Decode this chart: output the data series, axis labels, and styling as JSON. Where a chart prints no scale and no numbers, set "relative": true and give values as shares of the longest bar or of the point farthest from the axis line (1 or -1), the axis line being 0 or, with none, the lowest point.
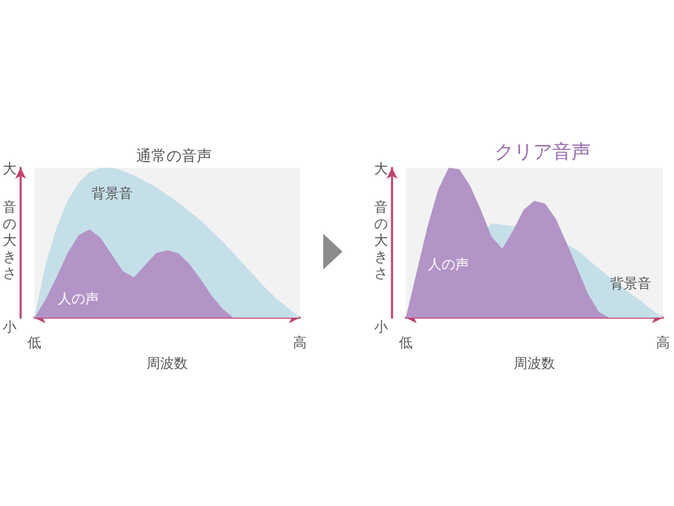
{
  "chart_data": [
    {
      "type": "area",
      "title": "通常の音声",
      "xlabel": "周波数",
      "ylabel": "音の大きさ",
      "relative": true,
      "annotations": [
        "大",
        "小"
      ],
      "categories": [
        "低",
        null,
        null,
        null,
        null,
        null,
        null,
        null,
        null,
        null,
        null,
        null,
        null,
        null,
        null,
        null,
        null,
        null,
        null,
        null,
        null,
        null,
        null,
        null,
        "高"
      ],
      "series": [
        {
          "name": "背景音",
          "color": "#c5dfe9",
          "values": [
            0,
            0.35,
            0.6,
            0.78,
            0.9,
            0.97,
            1,
            1,
            0.98,
            0.95,
            0.91,
            0.87,
            0.82,
            0.77,
            0.71,
            0.65,
            0.58,
            0.51,
            0.43,
            0.35,
            0.27,
            0.19,
            0.12,
            0.06,
            0
          ]
        },
        {
          "name": "人の声",
          "color": "#b394c6",
          "values": [
            0,
            0.12,
            0.27,
            0.43,
            0.55,
            0.59,
            0.53,
            0.42,
            0.31,
            0.27,
            0.35,
            0.43,
            0.45,
            0.43,
            0.36,
            0.26,
            0.15,
            0.06,
            0,
            0,
            0,
            0,
            0,
            0,
            0
          ]
        }
      ]
    },
    {
      "type": "area",
      "title": "クリア音声",
      "xlabel": "周波数",
      "ylabel": "音の大きさ",
      "relative": true,
      "annotations": [
        "大",
        "小"
      ],
      "categories": [
        "低",
        null,
        null,
        null,
        null,
        null,
        null,
        null,
        null,
        null,
        null,
        null,
        null,
        null,
        null,
        null,
        null,
        null,
        null,
        null,
        null,
        null,
        null,
        null,
        "高"
      ],
      "series": [
        {
          "name": "背景音",
          "color": "#c5dfe9",
          "values": [
            0,
            null,
            null,
            null,
            null,
            null,
            null,
            null,
            0.63,
            0.62,
            0.61,
            null,
            null,
            null,
            null,
            0.49,
            0.45,
            0.39,
            0.33,
            0.27,
            0.22,
            0.16,
            0.11,
            0.05,
            0
          ]
        },
        {
          "name": "人の声",
          "color": "#b394c6",
          "values": [
            0,
            0.3,
            0.6,
            0.85,
            1,
            0.99,
            0.88,
            0.72,
            0.54,
            0.46,
            0.58,
            0.72,
            0.78,
            0.76,
            0.66,
            0.5,
            0.33,
            0.16,
            0.04,
            0,
            0,
            0,
            0,
            0,
            0
          ]
        }
      ]
    }
  ]
}
